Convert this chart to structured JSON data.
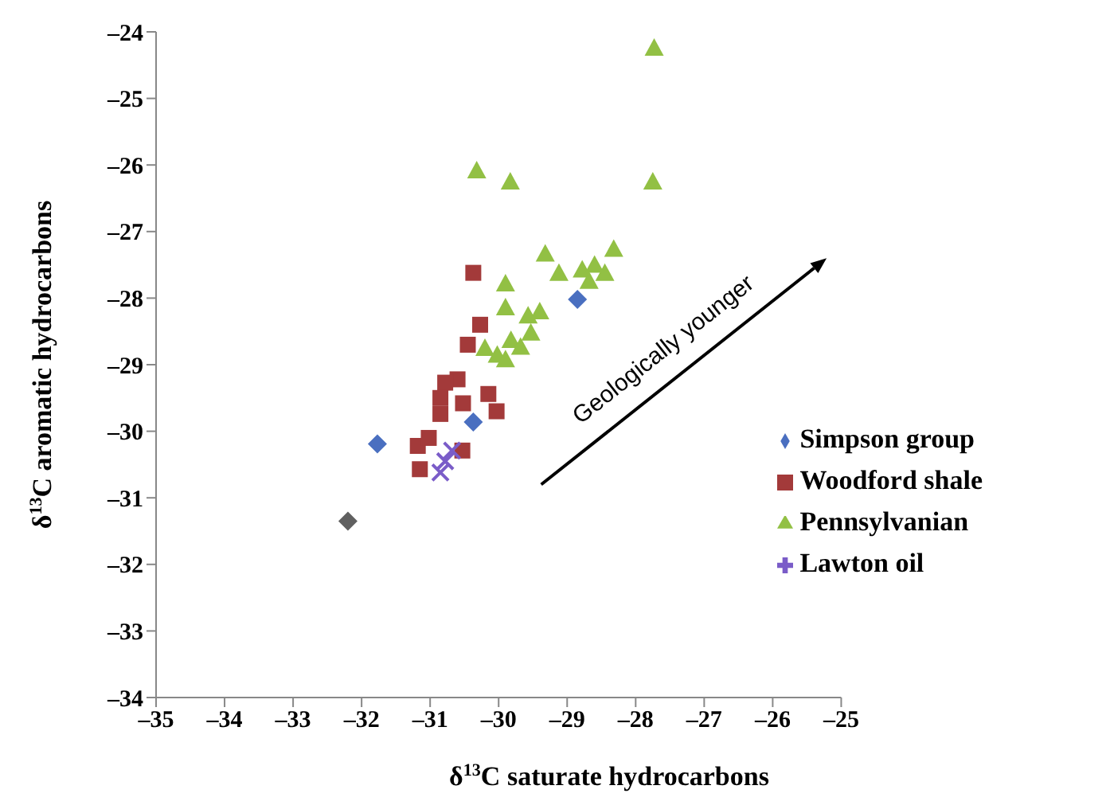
{
  "chart_data": {
    "type": "scatter",
    "xlabel": "δ$^{13}$C saturate hydrocarbons",
    "ylabel": "δ$^{13}$C aromatic hydrocarbons",
    "xlim": [
      -35,
      -25
    ],
    "xticks": [
      {
        "value": -35,
        "label": "–35"
      },
      {
        "value": -34,
        "label": "–34"
      },
      {
        "value": -33,
        "label": "–33"
      },
      {
        "value": -32,
        "label": "–32"
      },
      {
        "value": -31,
        "label": "–31"
      },
      {
        "value": -30,
        "label": "–30"
      },
      {
        "value": -29,
        "label": "–29"
      },
      {
        "value": -28,
        "label": "–28"
      },
      {
        "value": -27,
        "label": "–27"
      },
      {
        "value": -26,
        "label": "–26"
      },
      {
        "value": -25,
        "label": "–25"
      }
    ],
    "ylim": [
      -34,
      -24
    ],
    "yticks": [
      {
        "value": -34,
        "label": "–34"
      },
      {
        "value": -33,
        "label": "–33"
      },
      {
        "value": -32,
        "label": "–32"
      },
      {
        "value": -31,
        "label": "–31"
      },
      {
        "value": -30,
        "label": "–30"
      },
      {
        "value": -29,
        "label": "–29"
      },
      {
        "value": -28,
        "label": "–28"
      },
      {
        "value": -27,
        "label": "–27"
      },
      {
        "value": -26,
        "label": "–26"
      },
      {
        "value": -25,
        "label": "–25"
      },
      {
        "value": -24,
        "label": "–24"
      }
    ],
    "grid": false,
    "legend": "right",
    "annotations": [
      "Geologically younger"
    ],
    "series": [
      {
        "name": "Simpson group",
        "color": "#4a6fc0",
        "marker": "diamond",
        "x": [
          -31.77,
          -30.37,
          -28.85
        ],
        "values": [
          -30.19,
          -29.86,
          -28.02
        ]
      },
      {
        "name": "Woodford shale",
        "color": "#a33a3a",
        "marker": "square",
        "x": [
          -30.37,
          -30.27,
          -30.45,
          -30.6,
          -30.78,
          -30.85,
          -30.52,
          -30.15,
          -30.03,
          -30.85,
          -31.18,
          -31.02,
          -31.15,
          -30.53
        ],
        "values": [
          -27.62,
          -28.4,
          -28.7,
          -29.22,
          -29.27,
          -29.5,
          -29.58,
          -29.44,
          -29.7,
          -29.74,
          -30.22,
          -30.1,
          -30.57,
          -30.29
        ]
      },
      {
        "name": "Pennsylvanian",
        "color": "#92c044",
        "marker": "triangle",
        "x": [
          -27.73,
          -30.32,
          -29.83,
          -27.75,
          -29.32,
          -29.12,
          -28.78,
          -28.6,
          -28.45,
          -28.32,
          -28.68,
          -29.9,
          -29.9,
          -29.57,
          -29.4,
          -30.2,
          -30.02,
          -29.82,
          -29.9,
          -29.68,
          -29.53
        ],
        "values": [
          -24.24,
          -26.08,
          -26.25,
          -26.25,
          -27.33,
          -27.62,
          -27.57,
          -27.5,
          -27.62,
          -27.26,
          -27.74,
          -27.78,
          -28.14,
          -28.26,
          -28.2,
          -28.75,
          -28.85,
          -28.63,
          -28.92,
          -28.73,
          -28.52
        ]
      },
      {
        "name": "Lawton oil",
        "color": "#7a5cc8",
        "marker": "cross",
        "x": [
          -30.78,
          -30.68,
          -30.85
        ],
        "values": [
          -30.45,
          -30.29,
          -30.62
        ]
      },
      {
        "color": "#606060",
        "marker": "diamond",
        "x": [
          -32.2
        ],
        "values": [
          -31.35
        ]
      }
    ]
  }
}
